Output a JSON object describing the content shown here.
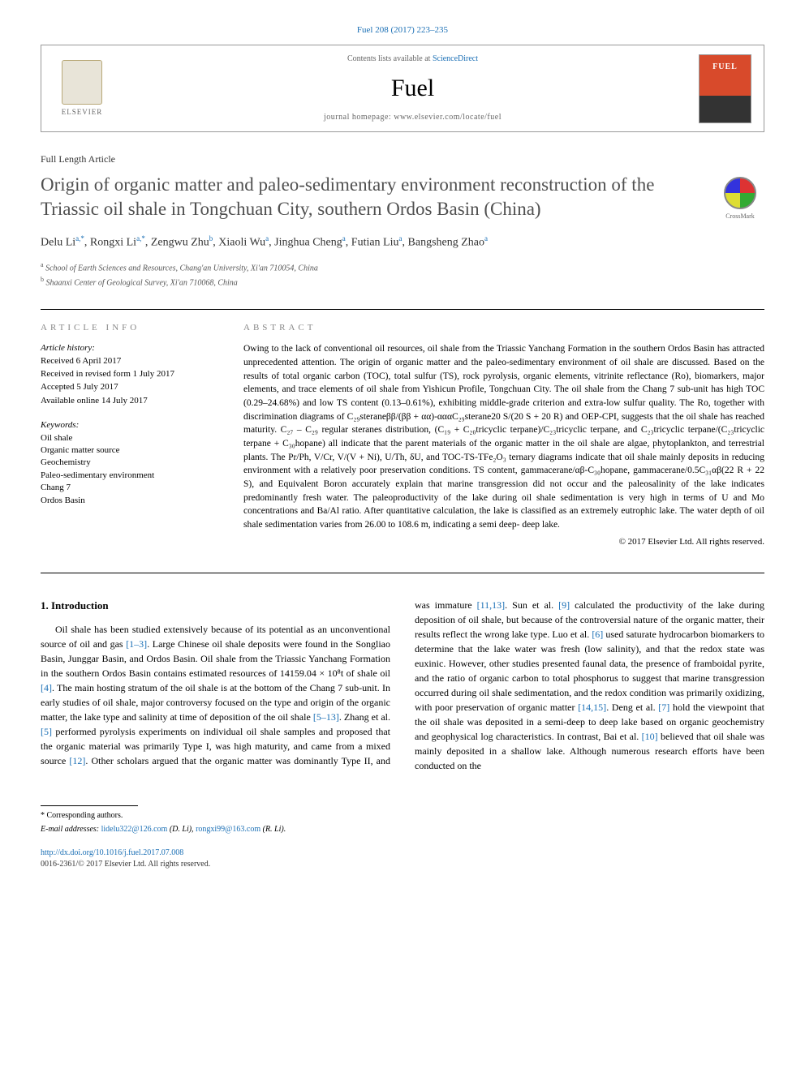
{
  "citation": "Fuel 208 (2017) 223–235",
  "header": {
    "contents_prefix": "Contents lists available at ",
    "contents_link": "ScienceDirect",
    "journal": "Fuel",
    "homepage_prefix": "journal homepage: ",
    "homepage": "www.elsevier.com/locate/fuel",
    "publisher": "ELSEVIER"
  },
  "article_type": "Full Length Article",
  "crossmark": "CrossMark",
  "title": "Origin of organic matter and paleo-sedimentary environment reconstruction of the Triassic oil shale in Tongchuan City, southern Ordos Basin (China)",
  "authors_html": "Delu Li<sup>a,*</sup>, Rongxi Li<sup>a,*</sup>, Zengwu Zhu<sup>b</sup>, Xiaoli Wu<sup>a</sup>, Jinghua Cheng<sup>a</sup>, Futian Liu<sup>a</sup>, Bangsheng Zhao<sup>a</sup>",
  "affiliations": [
    {
      "marker": "a",
      "text": "School of Earth Sciences and Resources, Chang'an University, Xi'an 710054, China"
    },
    {
      "marker": "b",
      "text": "Shaanxi Center of Geological Survey, Xi'an 710068, China"
    }
  ],
  "info": {
    "heading": "ARTICLE INFO",
    "history_label": "Article history:",
    "history": [
      "Received 6 April 2017",
      "Received in revised form 1 July 2017",
      "Accepted 5 July 2017",
      "Available online 14 July 2017"
    ],
    "keywords_label": "Keywords:",
    "keywords": [
      "Oil shale",
      "Organic matter source",
      "Geochemistry",
      "Paleo-sedimentary environment",
      "Chang 7",
      "Ordos Basin"
    ]
  },
  "abstract": {
    "heading": "ABSTRACT",
    "text": "Owing to the lack of conventional oil resources, oil shale from the Triassic Yanchang Formation in the southern Ordos Basin has attracted unprecedented attention. The origin of organic matter and the paleo-sedimentary environment of oil shale are discussed. Based on the results of total organic carbon (TOC), total sulfur (TS), rock pyrolysis, organic elements, vitrinite reflectance (Ro), biomarkers, major elements, and trace elements of oil shale from Yishicun Profile, Tongchuan City. The oil shale from the Chang 7 sub-unit has high TOC (0.29–24.68%) and low TS content (0.13–0.61%), exhibiting middle-grade criterion and extra-low sulfur quality. The Ro, together with discrimination diagrams of C₂₉steraneββ/(ββ + αα)-αααC₂₉sterane20 S/(20 S + 20 R) and OEP-CPI, suggests that the oil shale has reached maturity. C₂₇ – C₂₉ regular steranes distribution, (C₁₉ + C₂₀tricyclic terpane)/C₂₃tricyclic terpane, and C₂₃tricyclic terpane/(C₂₃tricyclic terpane + C₃₀hopane) all indicate that the parent materials of the organic matter in the oil shale are algae, phytoplankton, and terrestrial plants. The Pr/Ph, V/Cr, V/(V + Ni), U/Th, δU, and TOC-TS-TFe₂O₃ ternary diagrams indicate that oil shale mainly deposits in reducing environment with a relatively poor preservation conditions. TS content, gammacerane/αβ-C₃₀hopane, gammacerane/0.5C₃₁αβ(22 R + 22 S), and Equivalent Boron accurately explain that marine transgression did not occur and the paleosalinity of the lake indicates predominantly fresh water. The paleoproductivity of the lake during oil shale sedimentation is very high in terms of U and Mo concentrations and Ba/Al ratio. After quantitative calculation, the lake is classified as an extremely eutrophic lake. The water depth of oil shale sedimentation varies from 26.00 to 108.6 m, indicating a semi deep- deep lake.",
    "copyright": "© 2017 Elsevier Ltd. All rights reserved."
  },
  "body": {
    "section_title": "1. Introduction",
    "para1_part1": "Oil shale has been studied extensively because of its potential as an unconventional source of oil and gas ",
    "ref1": "[1–3]",
    "para1_part2": ". Large Chinese oil shale deposits were found in the Songliao Basin, Junggar Basin, and Ordos Basin. Oil shale from the Triassic Yanchang Formation in the southern Ordos Basin contains estimated resources of 14159.04 × 10⁸t of shale oil ",
    "ref2": "[4]",
    "para1_part3": ". The main hosting stratum of the oil shale is at the bottom of the Chang 7 sub-unit. In early studies of oil shale, major controversy focused on the type and origin of the organic matter, the lake type and salinity at time of deposition of the oil shale ",
    "ref3": "[5–13]",
    "para1_part4": ". Zhang et al. ",
    "ref4": "[5]",
    "para1_part5": " performed pyrolysis experiments on individual oil shale samples and proposed that the organic material was primarily Type I, was high maturity, and came from a mixed source ",
    "ref5": "[12]",
    "para1_part6": ". Other scholars argued that the organic matter was dominantly Type II, and was immature ",
    "ref6": "[11,13]",
    "para1_part7": ". Sun et al. ",
    "ref7": "[9]",
    "para1_part8": " calculated the productivity of the lake during deposition of oil shale, but because of the controversial nature of the organic matter, their results reflect the wrong lake type. Luo et al. ",
    "ref8": "[6]",
    "para1_part9": " used saturate hydrocarbon biomarkers to determine that the lake water was fresh (low salinity), and that the redox state was euxinic. However, other studies presented faunal data, the presence of framboidal pyrite, and the ratio of organic carbon to total phosphorus to suggest that marine transgression occurred during oil shale sedimentation, and the redox condition was primarily oxidizing, with poor preservation of organic matter ",
    "ref9": "[14,15]",
    "para1_part10": ". Deng et al. ",
    "ref10": "[7]",
    "para1_part11": " hold the viewpoint that the oil shale was deposited in a semi-deep to deep lake based on organic geochemistry and geophysical log characteristics. In contrast, Bai et al. ",
    "ref11": "[10]",
    "para1_part12": " believed that oil shale was mainly deposited in a shallow lake. Although numerous research efforts have been conducted on the"
  },
  "footer": {
    "corresponding": "* Corresponding authors.",
    "email_label": "E-mail addresses: ",
    "email1": "lidelu322@126.com",
    "email1_name": " (D. Li), ",
    "email2": "rongxi99@163.com",
    "email2_name": " (R. Li).",
    "doi": "http://dx.doi.org/10.1016/j.fuel.2017.07.008",
    "issn_copyright": "0016-2361/© 2017 Elsevier Ltd. All rights reserved."
  }
}
